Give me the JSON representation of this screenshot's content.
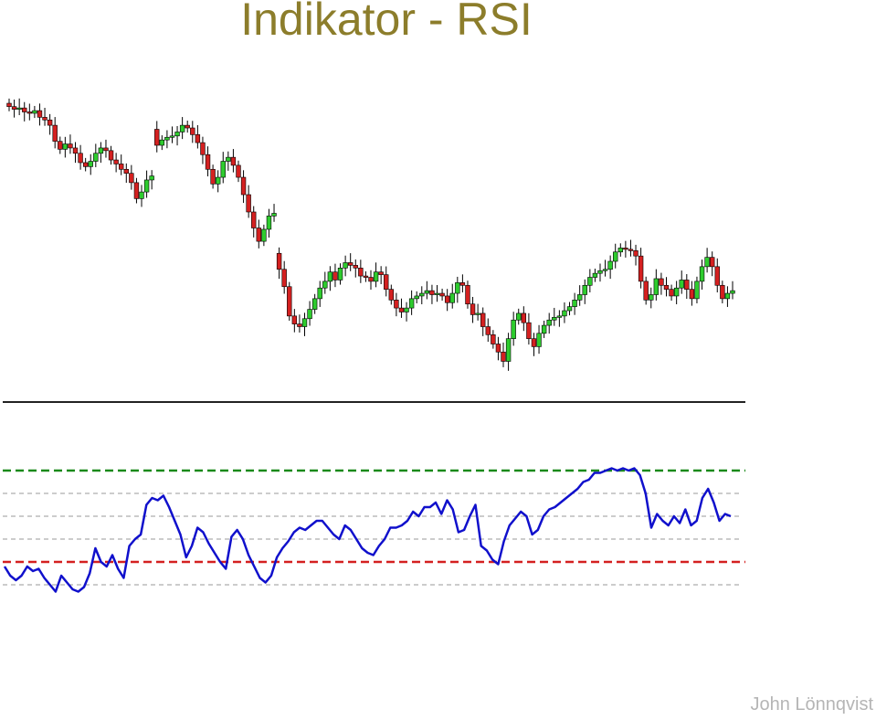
{
  "title": "Indikator - RSI",
  "author": "John Lönnqvist",
  "colors": {
    "title": "#8c7d2b",
    "up_candle": "#2ecc2e",
    "down_candle": "#d42020",
    "rsi_line": "#1010cc",
    "overbought_line": "#1a8a1a",
    "oversold_line": "#d42020",
    "grid": "#999999",
    "author": "#b5b5b5"
  },
  "chart_data": [
    {
      "type": "candlestick",
      "title": "",
      "xlabel": "",
      "ylabel": "",
      "close": [
        100.0,
        99.8,
        99.9,
        99.6,
        99.5,
        99.7,
        99.2,
        99.0,
        98.6,
        97.4,
        96.8,
        97.2,
        96.9,
        96.5,
        95.8,
        95.5,
        95.9,
        96.5,
        96.9,
        96.7,
        96.0,
        95.7,
        95.3,
        95.0,
        94.3,
        93.1,
        93.6,
        94.5,
        94.8,
        97.1,
        97.5,
        97.7,
        97.8,
        98.1,
        98.6,
        98.4,
        97.9,
        97.3,
        96.4,
        95.3,
        94.2,
        94.7,
        95.9,
        96.2,
        95.6,
        94.7,
        93.4,
        92.1,
        90.9,
        89.9,
        90.8,
        91.8,
        92.0,
        87.8,
        86.5,
        84.3,
        83.7,
        83.5,
        84.1,
        84.8,
        85.6,
        86.4,
        86.9,
        87.6,
        87.0,
        87.9,
        88.3,
        88.1,
        87.9,
        87.3,
        87.2,
        86.9,
        87.6,
        87.4,
        86.3,
        85.5,
        84.9,
        84.6,
        84.9,
        85.6,
        85.8,
        86.0,
        86.2,
        85.9,
        86.0,
        85.8,
        85.3,
        86.0,
        86.8,
        86.6,
        85.2,
        84.4,
        84.5,
        83.5,
        82.9,
        82.2,
        81.6,
        80.9,
        82.6,
        84.0,
        84.5,
        83.8,
        82.6,
        82.0,
        83.0,
        83.6,
        84.0,
        84.2,
        84.3,
        84.7,
        85.0,
        85.5,
        85.9,
        86.6,
        87.2,
        87.5,
        87.7,
        87.8,
        88.4,
        89.1,
        89.4,
        89.3,
        89.2,
        88.8,
        86.9,
        85.5,
        85.9,
        87.1,
        86.6,
        86.3,
        85.8,
        86.4,
        87.0,
        86.3,
        85.6,
        86.9,
        88.0,
        88.7,
        88.0,
        86.6,
        85.6,
        86.0,
        86.2
      ]
    },
    {
      "type": "line",
      "title": "",
      "xlabel": "",
      "ylabel": "",
      "ylim": [
        0,
        100
      ],
      "overbought": 70,
      "oversold": 30,
      "grid_levels": [
        60,
        50,
        40,
        20
      ],
      "series": [
        {
          "values": [
            28,
            24,
            22,
            24,
            28,
            26,
            27,
            23,
            20,
            17,
            24,
            21,
            18,
            17,
            19,
            25,
            36,
            30,
            28,
            33,
            27,
            23,
            37,
            40,
            42,
            55,
            58,
            57,
            59,
            54,
            48,
            42,
            32,
            37,
            45,
            43,
            38,
            34,
            30,
            27,
            41,
            44,
            40,
            33,
            28,
            23,
            21,
            24,
            32,
            36,
            39,
            43,
            45,
            44,
            46,
            48,
            48,
            45,
            42,
            40,
            46,
            44,
            40,
            36,
            34,
            33,
            37,
            40,
            45,
            45,
            46,
            48,
            52,
            50,
            54,
            54,
            56,
            51,
            57,
            53,
            43,
            44,
            50,
            55,
            37,
            35,
            31,
            29,
            39,
            46,
            49,
            52,
            50,
            42,
            44,
            50,
            53,
            54,
            56,
            58,
            60,
            62,
            65,
            66,
            69,
            69,
            70,
            71,
            70,
            71,
            70,
            71,
            68,
            60,
            45,
            51,
            48,
            46,
            50,
            47,
            53,
            46,
            48,
            58,
            62,
            56,
            48,
            51,
            50
          ]
        }
      ]
    }
  ]
}
